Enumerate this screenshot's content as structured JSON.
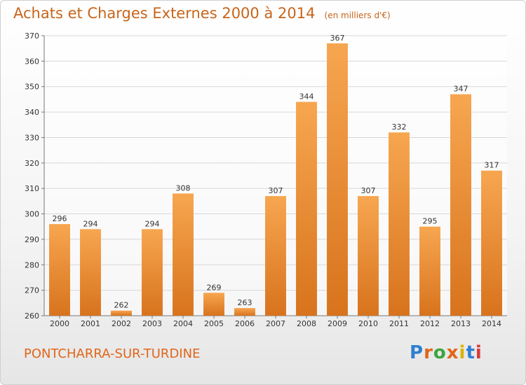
{
  "header": {
    "title": "Achats et Charges Externes 2000 à 2014",
    "unit": "(en milliers d'€)"
  },
  "footer": {
    "city": "PONTCHARRA-SUR-TURDINE",
    "brand": "Proxiti",
    "brand_colors": [
      "#2f7fd1",
      "#e0661a",
      "#3aa640",
      "#e0661a",
      "#d8b400",
      "#2f7fd1",
      "#d93a3a"
    ]
  },
  "colors": {
    "bar_top": "#f7a650",
    "bar_bottom": "#d8731d",
    "grid": "#d8d8d8",
    "axis": "#777777",
    "text": "#333333",
    "accent": "#c8641a"
  },
  "chart_data": {
    "type": "bar",
    "title": "Achats et Charges Externes 2000 à 2014",
    "subtitle": "(en milliers d'€)",
    "xlabel": "",
    "ylabel": "",
    "categories": [
      "2000",
      "2001",
      "2002",
      "2003",
      "2004",
      "2005",
      "2006",
      "2007",
      "2008",
      "2009",
      "2010",
      "2011",
      "2012",
      "2013",
      "2014"
    ],
    "values": [
      296,
      294,
      262,
      294,
      308,
      269,
      263,
      307,
      344,
      367,
      307,
      332,
      295,
      347,
      317
    ],
    "ylim": [
      260,
      370
    ],
    "yticks": [
      260,
      270,
      280,
      290,
      300,
      310,
      320,
      330,
      340,
      350,
      360,
      370
    ],
    "grid": true,
    "data_labels": true
  }
}
